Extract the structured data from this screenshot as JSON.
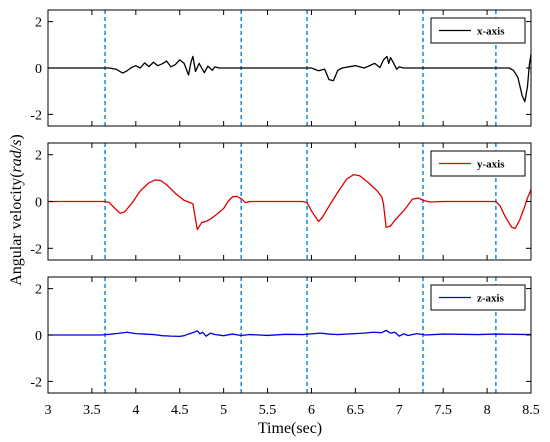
{
  "chart_data": {
    "type": "line",
    "xlabel": "Time(sec)",
    "ylabel_prefix": "Angular velocity(",
    "ylabel_italic": "rad/s",
    "ylabel_suffix": ")",
    "xlim": [
      3,
      8.5
    ],
    "x_ticks": [
      "3",
      "3.5",
      "4",
      "4.5",
      "5",
      "5.5",
      "6",
      "6.5",
      "7",
      "7.5",
      "8",
      "8.5"
    ],
    "y_ticks": [
      "2",
      "0",
      "-2"
    ],
    "vlines": [
      3.65,
      5.2,
      5.95,
      7.27,
      8.1
    ],
    "vline_color": "#1e90e6",
    "panels": [
      {
        "legend": "x-axis",
        "color": "#000000",
        "ylim": [
          -2.5,
          2.5
        ],
        "points": [
          [
            3,
            0
          ],
          [
            3.7,
            0
          ],
          [
            3.78,
            -0.06
          ],
          [
            3.85,
            -0.22
          ],
          [
            3.9,
            -0.12
          ],
          [
            3.95,
            0.02
          ],
          [
            4.0,
            0.1
          ],
          [
            4.05,
            0.0
          ],
          [
            4.1,
            0.22
          ],
          [
            4.15,
            0.06
          ],
          [
            4.2,
            0.25
          ],
          [
            4.25,
            0.1
          ],
          [
            4.3,
            0.18
          ],
          [
            4.35,
            0.3
          ],
          [
            4.4,
            0.05
          ],
          [
            4.45,
            0.15
          ],
          [
            4.5,
            0.35
          ],
          [
            4.55,
            0.2
          ],
          [
            4.6,
            -0.3
          ],
          [
            4.63,
            0.28
          ],
          [
            4.65,
            0.5
          ],
          [
            4.68,
            -0.15
          ],
          [
            4.72,
            0.2
          ],
          [
            4.78,
            -0.2
          ],
          [
            4.82,
            0.08
          ],
          [
            4.87,
            -0.1
          ],
          [
            4.9,
            0.05
          ],
          [
            4.95,
            0.0
          ],
          [
            5.2,
            0.0
          ],
          [
            5.4,
            0.0
          ],
          [
            5.9,
            0.0
          ],
          [
            6.0,
            0.0
          ],
          [
            6.08,
            -0.12
          ],
          [
            6.15,
            -0.05
          ],
          [
            6.2,
            -0.5
          ],
          [
            6.25,
            -0.55
          ],
          [
            6.3,
            -0.1
          ],
          [
            6.35,
            0.0
          ],
          [
            6.5,
            0.1
          ],
          [
            6.6,
            0.0
          ],
          [
            6.65,
            0.08
          ],
          [
            6.72,
            0.2
          ],
          [
            6.78,
            0.02
          ],
          [
            6.82,
            0.35
          ],
          [
            6.86,
            0.5
          ],
          [
            6.88,
            0.2
          ],
          [
            6.9,
            0.45
          ],
          [
            6.93,
            0.25
          ],
          [
            6.97,
            -0.05
          ],
          [
            7.0,
            0.05
          ],
          [
            7.05,
            0.0
          ],
          [
            7.3,
            0.0
          ],
          [
            8.1,
            0.0
          ],
          [
            8.25,
            0.0
          ],
          [
            8.3,
            -0.1
          ],
          [
            8.35,
            -0.4
          ],
          [
            8.4,
            -1.2
          ],
          [
            8.43,
            -1.45
          ],
          [
            8.46,
            -0.8
          ],
          [
            8.48,
            0.1
          ],
          [
            8.5,
            0.6
          ]
        ]
      },
      {
        "legend": "y-axis",
        "color": "#e00000",
        "ylim": [
          -2.5,
          2.5
        ],
        "points": [
          [
            3,
            0
          ],
          [
            3.65,
            0
          ],
          [
            3.7,
            -0.05
          ],
          [
            3.75,
            -0.25
          ],
          [
            3.82,
            -0.5
          ],
          [
            3.87,
            -0.45
          ],
          [
            3.95,
            -0.1
          ],
          [
            4.05,
            0.45
          ],
          [
            4.15,
            0.8
          ],
          [
            4.22,
            0.92
          ],
          [
            4.28,
            0.9
          ],
          [
            4.35,
            0.72
          ],
          [
            4.45,
            0.35
          ],
          [
            4.55,
            0.05
          ],
          [
            4.6,
            -0.02
          ],
          [
            4.65,
            -0.1
          ],
          [
            4.7,
            -1.2
          ],
          [
            4.75,
            -0.9
          ],
          [
            4.8,
            -0.85
          ],
          [
            4.85,
            -0.75
          ],
          [
            4.92,
            -0.55
          ],
          [
            5.0,
            -0.3
          ],
          [
            5.05,
            0.0
          ],
          [
            5.1,
            0.2
          ],
          [
            5.15,
            0.22
          ],
          [
            5.2,
            0.12
          ],
          [
            5.25,
            -0.05
          ],
          [
            5.3,
            0.0
          ],
          [
            5.9,
            0.0
          ],
          [
            5.95,
            -0.05
          ],
          [
            6.0,
            -0.4
          ],
          [
            6.08,
            -0.85
          ],
          [
            6.12,
            -0.7
          ],
          [
            6.2,
            -0.2
          ],
          [
            6.3,
            0.4
          ],
          [
            6.4,
            0.95
          ],
          [
            6.48,
            1.15
          ],
          [
            6.55,
            1.1
          ],
          [
            6.65,
            0.8
          ],
          [
            6.75,
            0.45
          ],
          [
            6.8,
            0.2
          ],
          [
            6.82,
            -0.1
          ],
          [
            6.85,
            -1.1
          ],
          [
            6.9,
            -1.05
          ],
          [
            6.95,
            -0.8
          ],
          [
            7.05,
            -0.4
          ],
          [
            7.1,
            -0.15
          ],
          [
            7.15,
            0.1
          ],
          [
            7.22,
            0.15
          ],
          [
            7.27,
            0.05
          ],
          [
            7.35,
            -0.02
          ],
          [
            7.5,
            0.0
          ],
          [
            8.0,
            0.0
          ],
          [
            8.1,
            0.0
          ],
          [
            8.15,
            -0.2
          ],
          [
            8.2,
            -0.6
          ],
          [
            8.28,
            -1.1
          ],
          [
            8.32,
            -1.15
          ],
          [
            8.37,
            -0.8
          ],
          [
            8.42,
            -0.3
          ],
          [
            8.46,
            0.15
          ],
          [
            8.5,
            0.5
          ]
        ]
      },
      {
        "legend": "z-axis",
        "color": "#0000e6",
        "ylim": [
          -2.5,
          2.5
        ],
        "points": [
          [
            3,
            0
          ],
          [
            3.6,
            0
          ],
          [
            3.7,
            0.03
          ],
          [
            3.8,
            0.07
          ],
          [
            3.9,
            0.12
          ],
          [
            4.0,
            0.06
          ],
          [
            4.1,
            0.04
          ],
          [
            4.2,
            0.02
          ],
          [
            4.3,
            -0.03
          ],
          [
            4.4,
            -0.05
          ],
          [
            4.5,
            -0.06
          ],
          [
            4.55,
            -0.03
          ],
          [
            4.6,
            0.04
          ],
          [
            4.65,
            0.1
          ],
          [
            4.7,
            0.18
          ],
          [
            4.73,
            0.05
          ],
          [
            4.76,
            0.12
          ],
          [
            4.8,
            -0.05
          ],
          [
            4.85,
            0.08
          ],
          [
            4.9,
            0.02
          ],
          [
            5.0,
            -0.03
          ],
          [
            5.1,
            0.04
          ],
          [
            5.2,
            -0.02
          ],
          [
            5.3,
            0.02
          ],
          [
            5.5,
            -0.02
          ],
          [
            5.7,
            0.03
          ],
          [
            5.9,
            0.02
          ],
          [
            6.0,
            0.05
          ],
          [
            6.1,
            0.08
          ],
          [
            6.2,
            0.04
          ],
          [
            6.3,
            0.02
          ],
          [
            6.5,
            0.06
          ],
          [
            6.6,
            0.08
          ],
          [
            6.7,
            0.12
          ],
          [
            6.8,
            0.1
          ],
          [
            6.85,
            0.2
          ],
          [
            6.9,
            0.08
          ],
          [
            6.95,
            0.12
          ],
          [
            7.0,
            -0.05
          ],
          [
            7.05,
            0.05
          ],
          [
            7.1,
            -0.02
          ],
          [
            7.2,
            0.06
          ],
          [
            7.3,
            0.0
          ],
          [
            7.5,
            0.04
          ],
          [
            7.7,
            0.03
          ],
          [
            7.9,
            0.02
          ],
          [
            8.1,
            0.04
          ],
          [
            8.3,
            0.03
          ],
          [
            8.5,
            0.02
          ]
        ]
      }
    ]
  }
}
